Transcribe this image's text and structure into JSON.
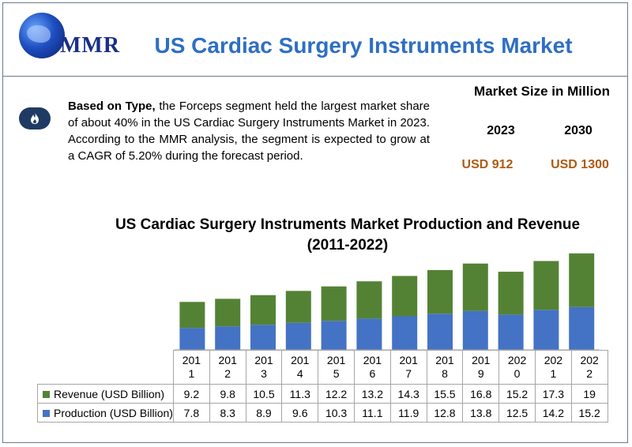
{
  "logo": {
    "text": "MMR"
  },
  "title": "US Cardiac Surgery Instruments Market",
  "description": {
    "bold": "Based on Type,",
    "text": " the Forceps segment held the largest market share of about 40% in the US Cardiac Surgery Instruments Market in 2023. According to the MMR analysis, the segment is expected to grow at a CAGR of 5.20% during the forecast period."
  },
  "market_size": {
    "title": "Market Size in Million",
    "years": [
      "2023",
      "2030"
    ],
    "values": [
      "USD 912",
      "USD 1300"
    ]
  },
  "colors": {
    "revenue": "#548235",
    "production": "#4472c4",
    "title": "#2e6fc2",
    "value": "#b05a12"
  },
  "chart_data": {
    "type": "bar",
    "stacked": true,
    "title": "US Cardiac Surgery Instruments Market Production and Revenue (2011-2022)",
    "categories": [
      [
        "201",
        "1"
      ],
      [
        "201",
        "2"
      ],
      [
        "201",
        "3"
      ],
      [
        "201",
        "4"
      ],
      [
        "201",
        "5"
      ],
      [
        "201",
        "6"
      ],
      [
        "201",
        "7"
      ],
      [
        "201",
        "8"
      ],
      [
        "201",
        "9"
      ],
      [
        "202",
        "0"
      ],
      [
        "202",
        "1"
      ],
      [
        "202",
        "2"
      ]
    ],
    "series": [
      {
        "name": "Production (USD Billion)",
        "values": [
          7.8,
          8.3,
          8.9,
          9.6,
          10.3,
          11.1,
          11.9,
          12.8,
          13.8,
          12.5,
          14.2,
          15.2
        ]
      },
      {
        "name": "Revenue (USD Billion)",
        "values": [
          9.2,
          9.8,
          10.5,
          11.3,
          12.2,
          13.2,
          14.3,
          15.5,
          16.8,
          15.2,
          17.3,
          19
        ]
      }
    ],
    "ylim": [
      0,
      35
    ],
    "legend": "data-table"
  }
}
